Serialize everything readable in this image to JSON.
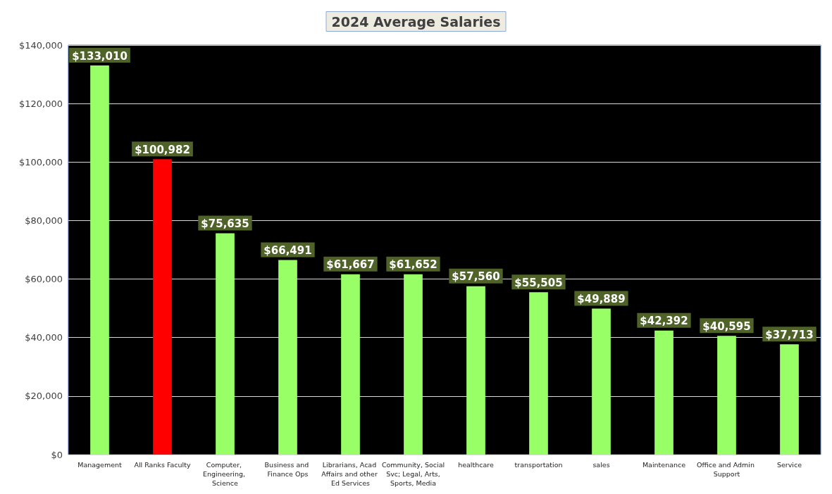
{
  "chart_data": {
    "type": "bar",
    "title": "2024 Average Salaries",
    "categories": [
      "Management",
      "All Ranks Faculty",
      "Computer, Engineering, Science",
      "Business and Finance Ops",
      "Librarians, Acad Affairs and other Ed Services",
      "Community, Social Svc; Legal, Arts, Sports, Media",
      "healthcare",
      "transportation",
      "sales",
      "Maintenance",
      "Office and Admin Support",
      "Service"
    ],
    "values": [
      133010,
      100982,
      75635,
      66491,
      61667,
      61652,
      57560,
      55505,
      49889,
      42392,
      40595,
      37713
    ],
    "colors": [
      "#99ff66",
      "#ff0000",
      "#99ff66",
      "#99ff66",
      "#99ff66",
      "#99ff66",
      "#99ff66",
      "#99ff66",
      "#99ff66",
      "#99ff66",
      "#99ff66",
      "#99ff66"
    ],
    "value_labels": [
      "$133,010",
      "$100,982",
      "$75,635",
      "$66,491",
      "$61,667",
      "$61,652",
      "$57,560",
      "$55,505",
      "$49,889",
      "$42,392",
      "$40,595",
      "$37,713"
    ],
    "ylim": [
      0,
      140000
    ],
    "yticks": [
      {
        "value": 0,
        "label": "$0"
      },
      {
        "value": 20000,
        "label": "$20,000"
      },
      {
        "value": 40000,
        "label": "$40,000"
      },
      {
        "value": 60000,
        "label": "$60,000"
      },
      {
        "value": 80000,
        "label": "$80,000"
      },
      {
        "value": 100000,
        "label": "$100,000"
      },
      {
        "value": 120000,
        "label": "$120,000"
      },
      {
        "value": 140000,
        "label": "$140,000"
      }
    ],
    "grid": "y"
  }
}
